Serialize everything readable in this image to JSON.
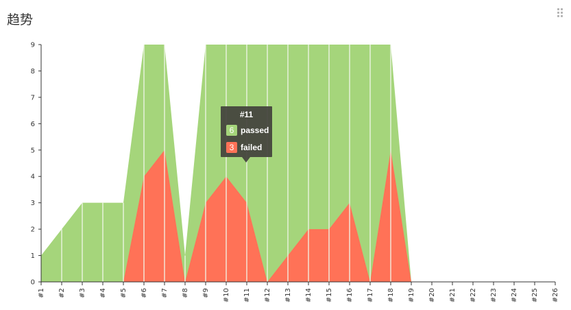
{
  "panel": {
    "title": "趋势"
  },
  "colors": {
    "passed": "#a5d57b",
    "failed": "#ff7257",
    "axis": "#333333",
    "divider": "#f2f8ec"
  },
  "chart_data": {
    "type": "area",
    "stacked": true,
    "categories": [
      "#1",
      "#2",
      "#3",
      "#4",
      "#5",
      "#6",
      "#7",
      "#8",
      "#9",
      "#10",
      "#11",
      "#12",
      "#13",
      "#14",
      "#15",
      "#16",
      "#17",
      "#18",
      "#19",
      "#20",
      "#21",
      "#22",
      "#23",
      "#24",
      "#25",
      "#26"
    ],
    "series": [
      {
        "name": "passed",
        "values": [
          1,
          2,
          3,
          3,
          3,
          5,
          4,
          1,
          6,
          5,
          6,
          9,
          8,
          7,
          7,
          6,
          9,
          4,
          0,
          null,
          null,
          null,
          null,
          null,
          null,
          null
        ]
      },
      {
        "name": "failed",
        "values": [
          0,
          0,
          0,
          0,
          0,
          4,
          5,
          0,
          3,
          4,
          3,
          0,
          1,
          2,
          2,
          3,
          0,
          5,
          0,
          null,
          null,
          null,
          null,
          null,
          null,
          null
        ]
      }
    ],
    "ylim": [
      0,
      9
    ],
    "yticks": [
      0,
      1,
      2,
      3,
      4,
      5,
      6,
      7,
      8,
      9
    ],
    "grid": false,
    "tooltip": {
      "category": "#11",
      "passed": "6",
      "failed": "3"
    }
  }
}
